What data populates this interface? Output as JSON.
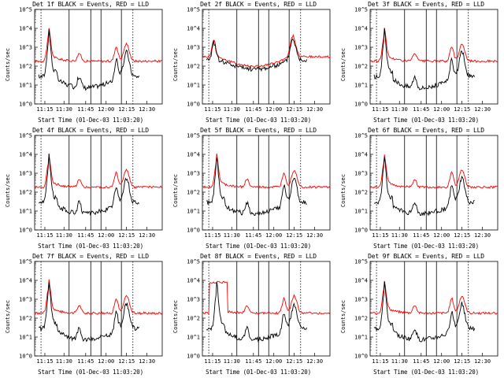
{
  "chart_data": [
    {
      "type": "line",
      "title": "Det 1f BLACK = Events, RED = LLD",
      "xlabel": "Start Time (01-Dec-03 11:03:20)",
      "ylabel": "Counts/sec",
      "x_ticks": [
        "11:15",
        "11:30",
        "11:45",
        "12:00",
        "12:15",
        "12:30"
      ],
      "y_ticks": [
        "10^0",
        "10^1",
        "10^2",
        "10^3",
        "10^4",
        "10^5"
      ],
      "ylim_log10": [
        0,
        5
      ],
      "series": [
        {
          "name": "Events",
          "color": "#000000"
        },
        {
          "name": "LLD",
          "color": "#ff0000"
        }
      ]
    },
    {
      "type": "line",
      "title": "Det 2f BLACK = Events, RED = LLD",
      "xlabel": "Start Time (01-Dec-03 11:03:20)",
      "ylabel": "Counts/sec",
      "x_ticks": [
        "11:15",
        "11:30",
        "11:45",
        "12:00",
        "12:15",
        "12:30"
      ],
      "y_ticks": [
        "10^0",
        "10^1",
        "10^2",
        "10^3",
        "10^4",
        "10^5"
      ],
      "ylim_log10": [
        0,
        5
      ],
      "series": [
        {
          "name": "Events",
          "color": "#000000"
        },
        {
          "name": "LLD",
          "color": "#ff0000"
        }
      ]
    },
    {
      "type": "line",
      "title": "Det 3f BLACK = Events, RED = LLD",
      "xlabel": "Start Time (01-Dec-03 11:03:20)",
      "ylabel": "Counts/sec",
      "x_ticks": [
        "11:15",
        "11:30",
        "11:45",
        "12:00",
        "12:15",
        "12:30"
      ],
      "y_ticks": [
        "10^0",
        "10^1",
        "10^2",
        "10^3",
        "10^4",
        "10^5"
      ],
      "ylim_log10": [
        0,
        5
      ],
      "series": [
        {
          "name": "Events",
          "color": "#000000"
        },
        {
          "name": "LLD",
          "color": "#ff0000"
        }
      ]
    },
    {
      "type": "line",
      "title": "Det 4f BLACK = Events, RED = LLD",
      "xlabel": "Start Time (01-Dec-03 11:03:20)",
      "ylabel": "Counts/sec",
      "x_ticks": [
        "11:15",
        "11:30",
        "11:45",
        "12:00",
        "12:15",
        "12:30"
      ],
      "y_ticks": [
        "10^0",
        "10^1",
        "10^2",
        "10^3",
        "10^4",
        "10^5"
      ],
      "ylim_log10": [
        0,
        5
      ],
      "series": [
        {
          "name": "Events",
          "color": "#000000"
        },
        {
          "name": "LLD",
          "color": "#ff0000"
        }
      ]
    },
    {
      "type": "line",
      "title": "Det 5f BLACK = Events, RED = LLD",
      "xlabel": "Start Time (01-Dec-03 11:03:20)",
      "ylabel": "Counts/sec",
      "x_ticks": [
        "11:15",
        "11:30",
        "11:45",
        "12:00",
        "12:15",
        "12:30"
      ],
      "y_ticks": [
        "10^0",
        "10^1",
        "10^2",
        "10^3",
        "10^4",
        "10^5"
      ],
      "ylim_log10": [
        0,
        5
      ],
      "series": [
        {
          "name": "Events",
          "color": "#000000"
        },
        {
          "name": "LLD",
          "color": "#ff0000"
        }
      ]
    },
    {
      "type": "line",
      "title": "Det 6f BLACK = Events, RED = LLD",
      "xlabel": "Start Time (01-Dec-03 11:03:20)",
      "ylabel": "Counts/sec",
      "x_ticks": [
        "11:15",
        "11:30",
        "11:45",
        "12:00",
        "12:15",
        "12:30"
      ],
      "y_ticks": [
        "10^0",
        "10^1",
        "10^2",
        "10^3",
        "10^4",
        "10^5"
      ],
      "ylim_log10": [
        0,
        5
      ],
      "series": [
        {
          "name": "Events",
          "color": "#000000"
        },
        {
          "name": "LLD",
          "color": "#ff0000"
        }
      ]
    },
    {
      "type": "line",
      "title": "Det 7f BLACK = Events, RED = LLD",
      "xlabel": "Start Time (01-Dec-03 11:03:20)",
      "ylabel": "Counts/sec",
      "x_ticks": [
        "11:15",
        "11:30",
        "11:45",
        "12:00",
        "12:15",
        "12:30"
      ],
      "y_ticks": [
        "10^0",
        "10^1",
        "10^2",
        "10^3",
        "10^4",
        "10^5"
      ],
      "ylim_log10": [
        0,
        5
      ],
      "series": [
        {
          "name": "Events",
          "color": "#000000"
        },
        {
          "name": "LLD",
          "color": "#ff0000"
        }
      ]
    },
    {
      "type": "line",
      "title": "Det 8f BLACK = Events, RED = LLD",
      "xlabel": "Start Time (01-Dec-03 11:03:20)",
      "ylabel": "Counts/sec",
      "x_ticks": [
        "11:15",
        "11:30",
        "11:45",
        "12:00",
        "12:15",
        "12:30"
      ],
      "y_ticks": [
        "10^0",
        "10^1",
        "10^2",
        "10^3",
        "10^4",
        "10^5"
      ],
      "ylim_log10": [
        0,
        5
      ],
      "series": [
        {
          "name": "Events",
          "color": "#000000"
        },
        {
          "name": "LLD",
          "color": "#ff0000"
        }
      ]
    },
    {
      "type": "line",
      "title": "Det 9f BLACK = Events, RED = LLD",
      "xlabel": "Start Time (01-Dec-03 11:03:20)",
      "ylabel": "Counts/sec",
      "x_ticks": [
        "11:15",
        "11:30",
        "11:45",
        "12:00",
        "12:15",
        "12:30"
      ],
      "y_ticks": [
        "10^0",
        "10^1",
        "10^2",
        "10^3",
        "10^4",
        "10^5"
      ],
      "ylim_log10": [
        0,
        5
      ],
      "series": [
        {
          "name": "Events",
          "color": "#000000"
        },
        {
          "name": "LLD",
          "color": "#ff0000"
        }
      ]
    }
  ]
}
